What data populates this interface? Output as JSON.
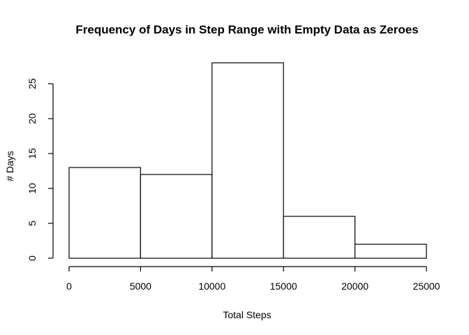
{
  "chart_data": {
    "type": "bar",
    "title": "Frequency of Days in Step Range with Empty Data as Zeroes",
    "xlabel": "Total Steps",
    "ylabel": "# Days",
    "bins": [
      {
        "from": 0,
        "to": 5000,
        "value": 13
      },
      {
        "from": 5000,
        "to": 10000,
        "value": 12
      },
      {
        "from": 10000,
        "to": 15000,
        "value": 28
      },
      {
        "from": 15000,
        "to": 20000,
        "value": 6
      },
      {
        "from": 20000,
        "to": 25000,
        "value": 2
      }
    ],
    "xlim": [
      0,
      25000
    ],
    "ylim": [
      0,
      28
    ],
    "x_ticks": [
      0,
      5000,
      10000,
      15000,
      20000,
      25000
    ],
    "y_ticks": [
      0,
      5,
      10,
      15,
      20,
      25
    ],
    "grid": false,
    "legend": "none",
    "bar_fill": "#ffffff",
    "bar_stroke": "#000000"
  }
}
